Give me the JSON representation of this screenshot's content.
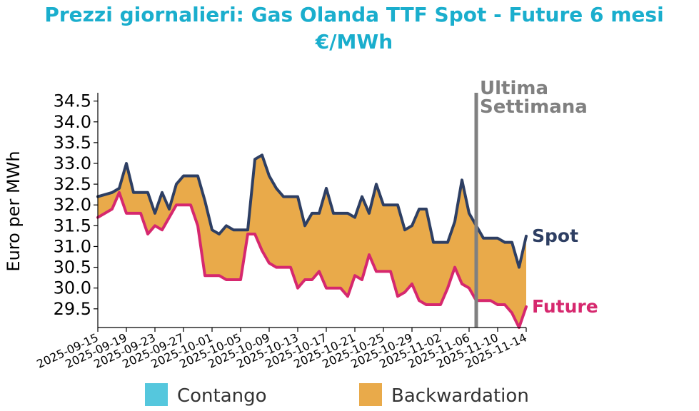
{
  "chart_data": {
    "type": "area",
    "title": "Prezzi giornalieri: Gas Olanda TTF Spot - Future 6 mesi",
    "subtitle": "€/MWh",
    "ylabel": "Euro per MWh",
    "xlabel": "",
    "ylim": [
      29.05,
      34.7
    ],
    "yticks": [
      29.5,
      30.0,
      30.5,
      31.0,
      31.5,
      32.0,
      32.5,
      33.0,
      33.5,
      34.0,
      34.5
    ],
    "ytick_labels": [
      "29.5",
      "30.0",
      "30.5",
      "31.0",
      "31.5",
      "32.0",
      "32.5",
      "33.0",
      "33.5",
      "34.0",
      "34.5"
    ],
    "xlim": [
      "2025-09-15",
      "2025-11-14"
    ],
    "xtick_labels": [
      "2025-09-15",
      "2025-09-19",
      "2025-09-23",
      "2025-09-27",
      "2025-10-01",
      "2025-10-05",
      "2025-10-09",
      "2025-10-13",
      "2025-10-17",
      "2025-10-21",
      "2025-10-25",
      "2025-10-29",
      "2025-11-02",
      "2025-11-06",
      "2025-11-10",
      "2025-11-14"
    ],
    "annotation": {
      "date": "2025-11-07",
      "line1": "Ultima",
      "line2": "Settimana",
      "color": "#808080"
    },
    "series": [
      {
        "name": "Spot",
        "color": "#2e3f63",
        "points": [
          [
            "2025-09-15",
            32.2
          ],
          [
            "2025-09-17",
            32.3
          ],
          [
            "2025-09-18",
            32.4
          ],
          [
            "2025-09-19",
            33.0
          ],
          [
            "2025-09-20",
            32.3
          ],
          [
            "2025-09-21",
            32.3
          ],
          [
            "2025-09-22",
            32.3
          ],
          [
            "2025-09-23",
            31.8
          ],
          [
            "2025-09-24",
            32.3
          ],
          [
            "2025-09-25",
            31.9
          ],
          [
            "2025-09-26",
            32.5
          ],
          [
            "2025-09-27",
            32.7
          ],
          [
            "2025-09-28",
            32.7
          ],
          [
            "2025-09-29",
            32.7
          ],
          [
            "2025-09-30",
            32.1
          ],
          [
            "2025-10-01",
            31.4
          ],
          [
            "2025-10-02",
            31.3
          ],
          [
            "2025-10-03",
            31.5
          ],
          [
            "2025-10-04",
            31.4
          ],
          [
            "2025-10-06",
            31.4
          ],
          [
            "2025-10-07",
            33.1
          ],
          [
            "2025-10-08",
            33.2
          ],
          [
            "2025-10-09",
            32.7
          ],
          [
            "2025-10-10",
            32.4
          ],
          [
            "2025-10-11",
            32.2
          ],
          [
            "2025-10-12",
            32.2
          ],
          [
            "2025-10-13",
            32.2
          ],
          [
            "2025-10-14",
            31.5
          ],
          [
            "2025-10-15",
            31.8
          ],
          [
            "2025-10-16",
            31.8
          ],
          [
            "2025-10-17",
            32.4
          ],
          [
            "2025-10-18",
            31.8
          ],
          [
            "2025-10-19",
            31.8
          ],
          [
            "2025-10-20",
            31.8
          ],
          [
            "2025-10-21",
            31.7
          ],
          [
            "2025-10-22",
            32.2
          ],
          [
            "2025-10-23",
            31.8
          ],
          [
            "2025-10-24",
            32.5
          ],
          [
            "2025-10-25",
            32.0
          ],
          [
            "2025-10-26",
            32.0
          ],
          [
            "2025-10-27",
            32.0
          ],
          [
            "2025-10-28",
            31.4
          ],
          [
            "2025-10-29",
            31.5
          ],
          [
            "2025-10-30",
            31.9
          ],
          [
            "2025-10-31",
            31.9
          ],
          [
            "2025-11-01",
            31.1
          ],
          [
            "2025-11-02",
            31.1
          ],
          [
            "2025-11-03",
            31.1
          ],
          [
            "2025-11-04",
            31.6
          ],
          [
            "2025-11-05",
            32.6
          ],
          [
            "2025-11-06",
            31.8
          ],
          [
            "2025-11-07",
            31.5
          ],
          [
            "2025-11-08",
            31.2
          ],
          [
            "2025-11-09",
            31.2
          ],
          [
            "2025-11-10",
            31.2
          ],
          [
            "2025-11-11",
            31.1
          ],
          [
            "2025-11-12",
            31.1
          ],
          [
            "2025-11-13",
            30.5
          ],
          [
            "2025-11-14",
            31.25
          ]
        ]
      },
      {
        "name": "Future",
        "color": "#d6286e",
        "points": [
          [
            "2025-09-15",
            31.7
          ],
          [
            "2025-09-17",
            31.9
          ],
          [
            "2025-09-18",
            32.3
          ],
          [
            "2025-09-19",
            31.8
          ],
          [
            "2025-09-20",
            31.8
          ],
          [
            "2025-09-21",
            31.8
          ],
          [
            "2025-09-22",
            31.3
          ],
          [
            "2025-09-23",
            31.5
          ],
          [
            "2025-09-24",
            31.4
          ],
          [
            "2025-09-25",
            31.7
          ],
          [
            "2025-09-26",
            32.0
          ],
          [
            "2025-09-27",
            32.0
          ],
          [
            "2025-09-28",
            32.0
          ],
          [
            "2025-09-29",
            31.5
          ],
          [
            "2025-09-30",
            30.3
          ],
          [
            "2025-10-01",
            30.3
          ],
          [
            "2025-10-02",
            30.3
          ],
          [
            "2025-10-03",
            30.2
          ],
          [
            "2025-10-04",
            30.2
          ],
          [
            "2025-10-05",
            30.2
          ],
          [
            "2025-10-06",
            31.3
          ],
          [
            "2025-10-07",
            31.3
          ],
          [
            "2025-10-08",
            30.9
          ],
          [
            "2025-10-09",
            30.6
          ],
          [
            "2025-10-10",
            30.5
          ],
          [
            "2025-10-11",
            30.5
          ],
          [
            "2025-10-12",
            30.5
          ],
          [
            "2025-10-13",
            30.0
          ],
          [
            "2025-10-14",
            30.2
          ],
          [
            "2025-10-15",
            30.2
          ],
          [
            "2025-10-16",
            30.4
          ],
          [
            "2025-10-17",
            30.0
          ],
          [
            "2025-10-18",
            30.0
          ],
          [
            "2025-10-19",
            30.0
          ],
          [
            "2025-10-20",
            29.8
          ],
          [
            "2025-10-21",
            30.3
          ],
          [
            "2025-10-22",
            30.2
          ],
          [
            "2025-10-23",
            30.8
          ],
          [
            "2025-10-24",
            30.4
          ],
          [
            "2025-10-25",
            30.4
          ],
          [
            "2025-10-26",
            30.4
          ],
          [
            "2025-10-27",
            29.8
          ],
          [
            "2025-10-28",
            29.9
          ],
          [
            "2025-10-29",
            30.1
          ],
          [
            "2025-10-30",
            29.7
          ],
          [
            "2025-10-31",
            29.6
          ],
          [
            "2025-11-01",
            29.6
          ],
          [
            "2025-11-02",
            29.6
          ],
          [
            "2025-11-03",
            30.0
          ],
          [
            "2025-11-04",
            30.5
          ],
          [
            "2025-11-05",
            30.1
          ],
          [
            "2025-11-06",
            30.0
          ],
          [
            "2025-11-07",
            29.7
          ],
          [
            "2025-11-08",
            29.7
          ],
          [
            "2025-11-09",
            29.7
          ],
          [
            "2025-11-10",
            29.6
          ],
          [
            "2025-11-11",
            29.6
          ],
          [
            "2025-11-12",
            29.4
          ],
          [
            "2025-11-13",
            29.05
          ],
          [
            "2025-11-14",
            29.55
          ]
        ]
      }
    ],
    "fill": {
      "color": "#e9aa4a",
      "label": "Backwardation"
    },
    "legend": {
      "placement": "bottom",
      "items": [
        {
          "label": "Contango",
          "color": "#55c7dd"
        },
        {
          "label": "Backwardation",
          "color": "#e9aa4a"
        }
      ]
    },
    "grid": false
  }
}
